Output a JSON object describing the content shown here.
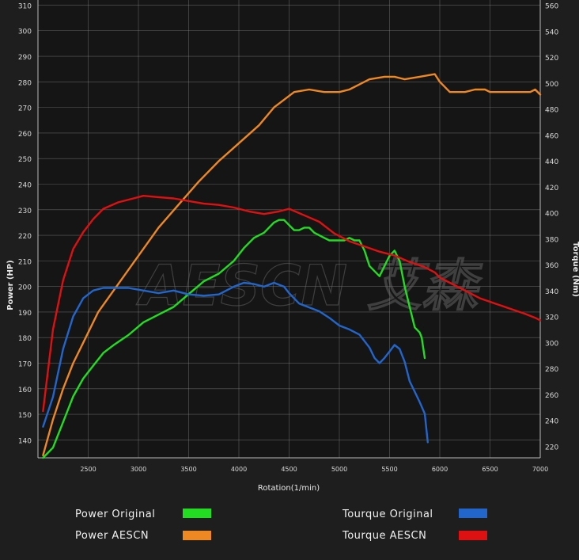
{
  "chart_data": {
    "type": "line",
    "xlabel": "Rotation(1/min)",
    "ylabel_left": "Power (HP)",
    "ylabel_right": "Torque (Nm)",
    "x_ticks": [
      "2500",
      "3000",
      "3500",
      "4000",
      "4500",
      "5000",
      "5500",
      "6000",
      "6500",
      "7000"
    ],
    "y_left_ticks": [
      "140",
      "150",
      "160",
      "170",
      "180",
      "190",
      "200",
      "210",
      "220",
      "230",
      "240",
      "250",
      "260",
      "270",
      "280",
      "290",
      "300",
      "310"
    ],
    "y_right_ticks": [
      "220",
      "240",
      "260",
      "280",
      "300",
      "320",
      "340",
      "360",
      "380",
      "400",
      "420",
      "440",
      "460",
      "480",
      "500",
      "520",
      "540",
      "560"
    ],
    "xlim": [
      2000,
      7000
    ],
    "ylim_left": [
      133,
      312
    ],
    "ylim_right": [
      211,
      564
    ],
    "watermark": "AESCN 艾森",
    "series": [
      {
        "name": "Power Original",
        "axis": "left",
        "color": "#22dd22",
        "x": [
          2050,
          2150,
          2250,
          2350,
          2450,
          2550,
          2650,
          2750,
          2900,
          3050,
          3200,
          3350,
          3500,
          3650,
          3800,
          3950,
          4050,
          4150,
          4250,
          4350,
          4400,
          4450,
          4500,
          4550,
          4600,
          4650,
          4700,
          4750,
          4800,
          4850,
          4900,
          4950,
          5000,
          5050,
          5100,
          5150,
          5200,
          5250,
          5300,
          5350,
          5400,
          5450,
          5500,
          5550,
          5600,
          5650,
          5700,
          5750,
          5800,
          5820,
          5850
        ],
        "y": [
          133,
          137,
          147,
          157,
          164,
          169,
          174,
          177,
          181,
          186,
          189,
          192,
          197,
          202,
          205,
          210,
          215,
          219,
          221,
          225,
          226,
          226,
          224,
          222,
          222,
          223,
          223,
          221,
          220,
          219,
          218,
          218,
          218,
          218,
          219,
          218,
          218,
          214,
          208,
          206,
          204,
          208,
          212,
          214,
          210,
          200,
          192,
          184,
          182,
          180,
          172
        ]
      },
      {
        "name": "Power AESCN",
        "axis": "left",
        "color": "#ee8822",
        "x": [
          2050,
          2150,
          2250,
          2350,
          2450,
          2600,
          2800,
          3000,
          3200,
          3400,
          3600,
          3800,
          4000,
          4200,
          4350,
          4550,
          4700,
          4850,
          5000,
          5100,
          5200,
          5300,
          5450,
          5550,
          5650,
          5800,
          5950,
          6000,
          6100,
          6250,
          6350,
          6450,
          6500,
          6600,
          6750,
          6900,
          6950,
          7000
        ],
        "y": [
          134,
          148,
          160,
          170,
          178,
          190,
          201,
          212,
          223,
          232,
          241,
          249,
          256,
          263,
          270,
          276,
          277,
          276,
          276,
          277,
          279,
          281,
          282,
          282,
          281,
          282,
          283,
          280,
          276,
          276,
          277,
          277,
          276,
          276,
          276,
          276,
          277,
          275
        ]
      },
      {
        "name": "Tourque Original",
        "axis": "right",
        "color": "#2266cc",
        "x": [
          2050,
          2150,
          2250,
          2350,
          2450,
          2550,
          2650,
          2750,
          2900,
          3050,
          3200,
          3350,
          3500,
          3650,
          3800,
          3950,
          4050,
          4150,
          4250,
          4350,
          4450,
          4500,
          4600,
          4700,
          4800,
          4900,
          5000,
          5100,
          5200,
          5300,
          5350,
          5400,
          5450,
          5500,
          5550,
          5600,
          5650,
          5700,
          5750,
          5800,
          5850,
          5880
        ],
        "y": [
          235,
          258,
          295,
          320,
          334,
          340,
          342,
          342,
          342,
          340,
          338,
          340,
          337,
          336,
          337,
          343,
          346,
          345,
          343,
          346,
          343,
          338,
          330,
          327,
          324,
          319,
          313,
          310,
          306,
          296,
          288,
          284,
          288,
          293,
          298,
          295,
          285,
          270,
          262,
          254,
          245,
          223
        ]
      },
      {
        "name": "Tourque AESCN",
        "axis": "right",
        "color": "#dd1111",
        "x": [
          2050,
          2150,
          2250,
          2350,
          2450,
          2550,
          2650,
          2800,
          2950,
          3050,
          3200,
          3350,
          3500,
          3650,
          3800,
          3950,
          4100,
          4250,
          4400,
          4500,
          4650,
          4800,
          4950,
          5100,
          5250,
          5400,
          5550,
          5700,
          5850,
          5950,
          6000,
          6100,
          6250,
          6400,
          6550,
          6700,
          6850,
          6950,
          7000
        ],
        "y": [
          247,
          310,
          348,
          372,
          385,
          395,
          403,
          408,
          411,
          413,
          412,
          411,
          409,
          407,
          406,
          404,
          401,
          399,
          401,
          403,
          398,
          393,
          384,
          378,
          374,
          370,
          367,
          362,
          358,
          354,
          350,
          346,
          340,
          334,
          330,
          326,
          322,
          319,
          317
        ]
      }
    ]
  },
  "legend": {
    "items": [
      {
        "label": "Power  Original",
        "color": "#22dd22"
      },
      {
        "label": "Power  AESCN",
        "color": "#ee8822"
      },
      {
        "label": "Tourque  Original",
        "color": "#2266cc"
      },
      {
        "label": "Tourque  AESCN",
        "color": "#dd1111"
      }
    ]
  }
}
